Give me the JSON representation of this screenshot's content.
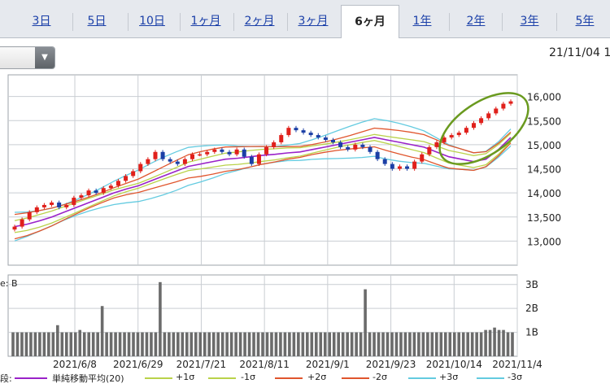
{
  "tabs": [
    {
      "label": "3日",
      "active": false
    },
    {
      "label": "5日",
      "active": false
    },
    {
      "label": "10日",
      "active": false
    },
    {
      "label": "1ヶ月",
      "active": false
    },
    {
      "label": "2ヶ月",
      "active": false
    },
    {
      "label": "3ヶ月",
      "active": false
    },
    {
      "label": "6ヶ月",
      "active": true
    },
    {
      "label": "1年",
      "active": false
    },
    {
      "label": "2年",
      "active": false
    },
    {
      "label": "3年",
      "active": false
    },
    {
      "label": "5年",
      "active": false
    }
  ],
  "header": {
    "date_label": "21/11/04 1"
  },
  "colors": {
    "up": "#e0201b",
    "down": "#1b3fa6",
    "ma": "#9a22c9",
    "s1": "#b9d24a",
    "s2": "#e0552d",
    "s3": "#64cbe0",
    "volume": "#6b6b6b",
    "annotation": "#6a9a1f"
  },
  "chart_data": {
    "type": "candlestick",
    "price_ticks": [
      "16,000",
      "15,500",
      "15,000",
      "14,500",
      "14,000",
      "13,500",
      "13,000"
    ],
    "price_tick_values": [
      16000,
      15500,
      15000,
      14500,
      14000,
      13500,
      13000
    ],
    "ylim": [
      12500,
      16450
    ],
    "x_ticks": [
      "2021/6/8",
      "2021/6/29",
      "2021/7/21",
      "2021/8/11",
      "2021/9/1",
      "2021/9/23",
      "2021/10/14",
      "2021/11/4"
    ],
    "volume_ticks": [
      "3B",
      "2B",
      "1B"
    ],
    "volume_tick_values": [
      3,
      2,
      1
    ],
    "volume_ylim": [
      0,
      3.4
    ],
    "ma_20": [
      13300,
      13350,
      13420,
      13500,
      13600,
      13700,
      13800,
      13900,
      14000,
      14080,
      14150,
      14250,
      14350,
      14450,
      14550,
      14600,
      14650,
      14700,
      14720,
      14750,
      14780,
      14800,
      14830,
      14850,
      14900,
      14950,
      15000,
      15050,
      15100,
      15150,
      15100,
      15050,
      15000,
      14950,
      14850,
      14750,
      14700,
      14650,
      14700,
      14900,
      15150
    ],
    "candles": [
      13300,
      13450,
      13600,
      13700,
      13750,
      13800,
      13700,
      13750,
      13900,
      13950,
      14050,
      14000,
      14100,
      14150,
      14250,
      14350,
      14450,
      14600,
      14700,
      14850,
      14700,
      14650,
      14600,
      14700,
      14800,
      14800,
      14850,
      14900,
      14850,
      14800,
      14900,
      14750,
      14600,
      14800,
      14950,
      15050,
      15200,
      15350,
      15300,
      15250,
      15200,
      15150,
      15100,
      15050,
      14950,
      14900,
      15000,
      14950,
      14850,
      14700,
      14600,
      14500,
      14550,
      14500,
      14650,
      14800,
      14950,
      15050,
      15150,
      15200,
      15250,
      15350,
      15450,
      15550,
      15650,
      15750,
      15850,
      15900
    ],
    "volumes": [
      1,
      1,
      1,
      1,
      1,
      1,
      1,
      1,
      1,
      1,
      1.3,
      1,
      1,
      1,
      1,
      1.1,
      1,
      1,
      1,
      1,
      2.1,
      1,
      1,
      1,
      1,
      1,
      1,
      1,
      1,
      1,
      1,
      1,
      1,
      3.1,
      1,
      1,
      1,
      1,
      1,
      1,
      1,
      1,
      1,
      1,
      1,
      1,
      1,
      1,
      1,
      1,
      1,
      1,
      1,
      1,
      1,
      1,
      1,
      1,
      1,
      1,
      1,
      1,
      1,
      1,
      1,
      1,
      1,
      1,
      1,
      1,
      1,
      1,
      1,
      1,
      1,
      1,
      1,
      1,
      1,
      2.8,
      1,
      1,
      1,
      1,
      1,
      1,
      1,
      1,
      1,
      1,
      1,
      1,
      1,
      1,
      1,
      1,
      1,
      1,
      1,
      1,
      1,
      1,
      1,
      1,
      1,
      1,
      1.1,
      1.1,
      1.2,
      1.1,
      1.1,
      1,
      1
    ]
  },
  "legend": [
    {
      "label": "単純移動平均(20)",
      "color": "#9a22c9"
    },
    {
      "label": "+1σ",
      "color": "#b9d24a"
    },
    {
      "label": "-1σ",
      "color": "#b9d24a"
    },
    {
      "label": "+2σ",
      "color": "#e0552d"
    },
    {
      "label": "-2σ",
      "color": "#e0552d"
    },
    {
      "label": "+3σ",
      "color": "#64cbe0"
    },
    {
      "label": "-3σ",
      "color": "#64cbe0"
    }
  ],
  "legend_prefix": "段:",
  "volume_axis_label": "e: B"
}
